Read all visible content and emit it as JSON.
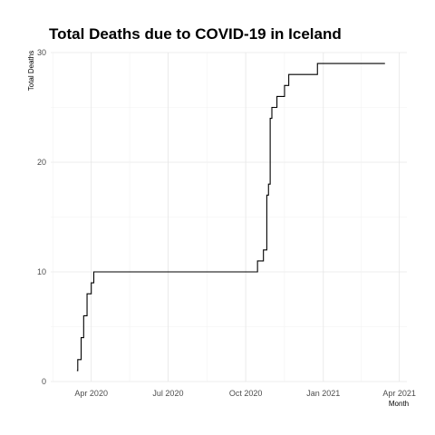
{
  "chart_data": {
    "type": "line",
    "title": "Total Deaths due to COVID-19 in Iceland",
    "xlabel": "Month",
    "ylabel": "Total Deaths",
    "xlim": [
      "2020-02-13",
      "2021-04-10"
    ],
    "ylim": [
      0,
      30
    ],
    "x_ticks": [
      {
        "date": "2020-04-01",
        "label": "Apr 2020"
      },
      {
        "date": "2020-07-01",
        "label": "Jul 2020"
      },
      {
        "date": "2020-10-01",
        "label": "Oct 2020"
      },
      {
        "date": "2021-01-01",
        "label": "Jan 2021"
      },
      {
        "date": "2021-04-01",
        "label": "Apr 2021"
      }
    ],
    "y_ticks": [
      0,
      10,
      20,
      30
    ],
    "grid": true,
    "series": [
      {
        "x": [
          "2020-03-15",
          "2020-03-16",
          "2020-03-19",
          "2020-03-20",
          "2020-03-21",
          "2020-03-23",
          "2020-03-24",
          "2020-03-27",
          "2020-03-28",
          "2020-04-01",
          "2020-04-02",
          "2020-04-04",
          "2020-04-05",
          "2020-10-15",
          "2020-10-16",
          "2020-10-22",
          "2020-10-23",
          "2020-10-26",
          "2020-10-27",
          "2020-10-28",
          "2020-10-29",
          "2020-10-30",
          "2020-10-31",
          "2020-11-01",
          "2020-11-06",
          "2020-11-07",
          "2020-11-15",
          "2020-11-16",
          "2020-11-20",
          "2020-11-21",
          "2020-11-28",
          "2020-11-29",
          "2020-12-24",
          "2020-12-25",
          "2021-03-15"
        ],
        "y": [
          1,
          2,
          2,
          4,
          4,
          6,
          6,
          8,
          8,
          9,
          9,
          10,
          10,
          11,
          11,
          12,
          12,
          17,
          17,
          18,
          18,
          24,
          24,
          25,
          25,
          26,
          26,
          27,
          27,
          28,
          28,
          28,
          28,
          29,
          29
        ]
      }
    ]
  }
}
